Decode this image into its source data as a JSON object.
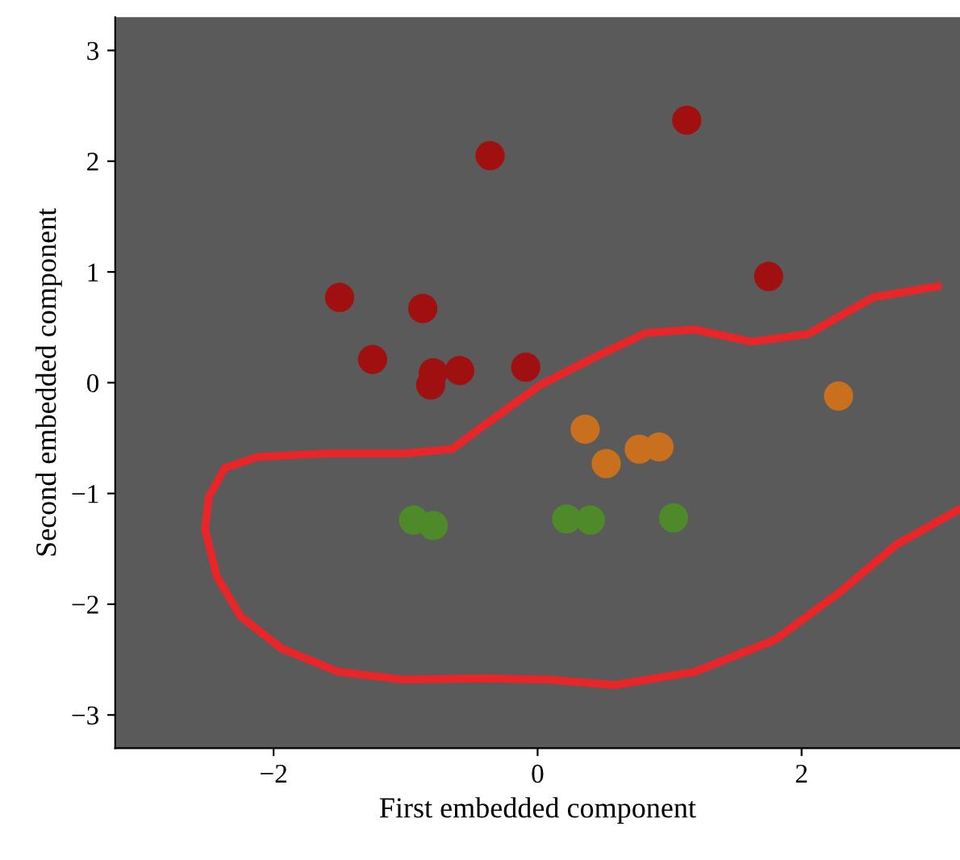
{
  "chart_data": {
    "type": "scatter",
    "xlabel": "First embedded component",
    "ylabel": "Second embedded component",
    "xlim": [
      -3.2,
      3.2
    ],
    "ylim": [
      -3.3,
      3.3
    ],
    "xticks": [
      {
        "value": -2,
        "label": "−2"
      },
      0,
      2
    ],
    "yticks": [
      {
        "value": -3,
        "label": "−3"
      },
      {
        "value": -2,
        "label": "−2"
      },
      {
        "value": -1,
        "label": "−1"
      },
      0,
      1,
      2,
      3
    ],
    "grid": false,
    "marker": "circle",
    "series": [
      {
        "color": "#a01010",
        "x": [
          -1.5,
          -0.87,
          -0.36,
          1.13,
          1.75,
          -1.25,
          -0.79,
          -0.81,
          -0.59,
          -0.09
        ],
        "values": [
          0.77,
          0.67,
          2.05,
          2.37,
          0.96,
          0.21,
          0.09,
          -0.02,
          0.11,
          0.14
        ]
      },
      {
        "color": "#c8701e",
        "x": [
          2.28,
          0.36,
          0.52,
          0.77,
          0.92
        ],
        "values": [
          -0.12,
          -0.42,
          -0.73,
          -0.6,
          -0.58
        ]
      },
      {
        "color": "#4e8a2a",
        "x": [
          -0.94,
          -0.79,
          0.22,
          0.4,
          1.03
        ],
        "values": [
          -1.24,
          -1.29,
          -1.23,
          -1.24,
          -1.22
        ]
      },
      {
        "type": "line",
        "color": "#e8262a",
        "marker": "none",
        "x": [
          3.03,
          2.54,
          2.05,
          1.62,
          1.19,
          0.82,
          0.45,
          0.02,
          -0.4,
          -0.65,
          -1.02,
          -1.63,
          -2.12,
          -2.37,
          -2.49,
          -2.52,
          -2.43,
          -2.25,
          -1.94,
          -1.51,
          -1.02,
          -0.4,
          0.09,
          0.58,
          1.19,
          1.8,
          2.29,
          2.72,
          3.2
        ],
        "values": [
          0.87,
          0.77,
          0.44,
          0.37,
          0.48,
          0.45,
          0.24,
          -0.02,
          -0.38,
          -0.6,
          -0.64,
          -0.64,
          -0.67,
          -0.77,
          -1.03,
          -1.32,
          -1.75,
          -2.11,
          -2.4,
          -2.61,
          -2.68,
          -2.67,
          -2.68,
          -2.73,
          -2.61,
          -2.32,
          -1.89,
          -1.46,
          -1.14
        ]
      }
    ]
  }
}
